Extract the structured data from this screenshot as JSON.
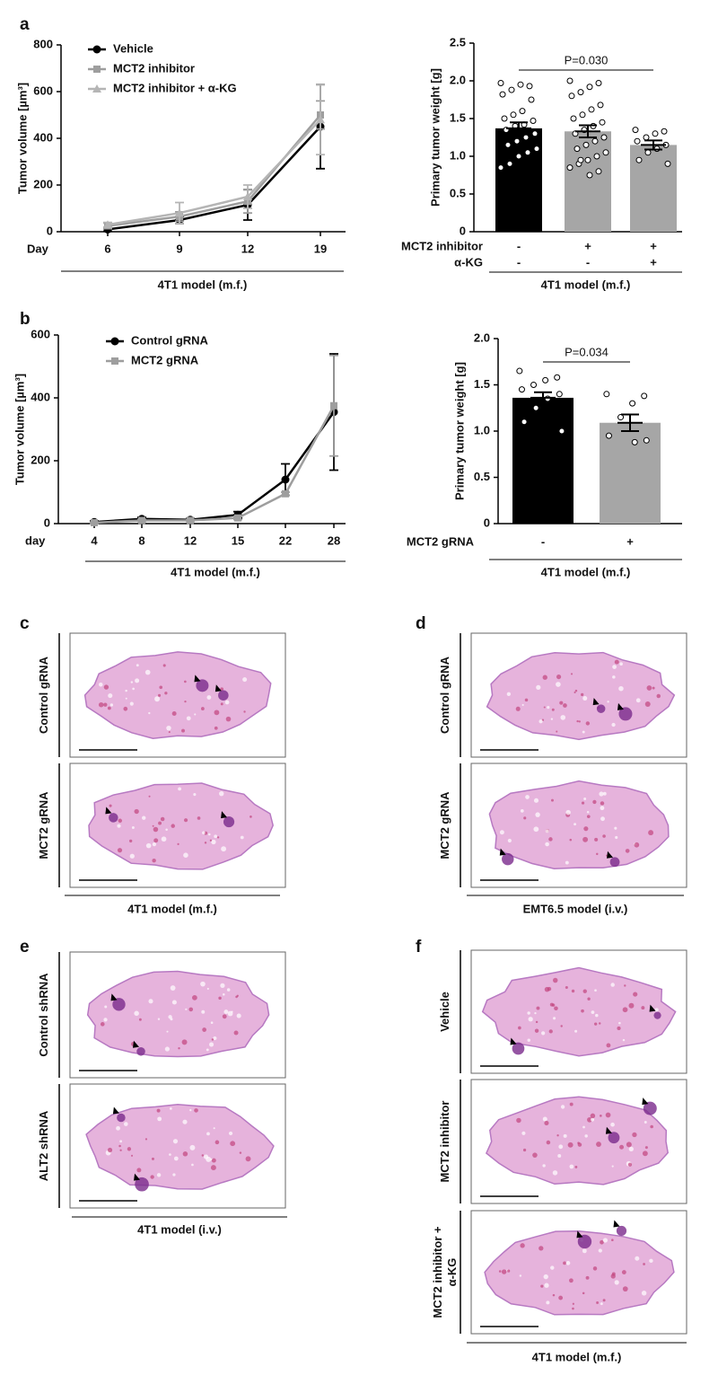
{
  "chart_data": [
    {
      "type": "line",
      "letter": "a",
      "ylabel": "Tumor volume [µm³]",
      "xlabel": "Day",
      "caption": "4T1 model (m.f.)",
      "categories": [
        6,
        9,
        12,
        19
      ],
      "ylim": [
        0,
        800
      ],
      "yticks": [
        0,
        200,
        400,
        600,
        800
      ],
      "series": [
        {
          "name": "Vehicle",
          "color": "#000000",
          "marker": "circle",
          "values": [
            10,
            50,
            115,
            450
          ],
          "errors": [
            8,
            15,
            65,
            180
          ]
        },
        {
          "name": "MCT2 inhibitor",
          "color": "#9e9e9e",
          "marker": "square",
          "values": [
            25,
            65,
            130,
            500
          ],
          "errors": [
            12,
            20,
            50,
            60
          ]
        },
        {
          "name": "MCT2 inhibitor + α-KG",
          "color": "#b5b5b5",
          "marker": "triangle",
          "values": [
            30,
            80,
            150,
            480
          ],
          "errors": [
            10,
            45,
            50,
            150
          ]
        }
      ]
    },
    {
      "type": "bar",
      "ylabel": "Primary tumor weight [g]",
      "caption": "4T1 model (m.f.)",
      "annotation": "P=0.030",
      "values": [
        1.37,
        1.33,
        1.15
      ],
      "errors": [
        0.08,
        0.08,
        0.06
      ],
      "colors": [
        "#000000",
        "#a6a6a6",
        "#a6a6a6"
      ],
      "ylim": [
        0,
        2.5
      ],
      "yticks": [
        0,
        0.5,
        {
          "value": 1,
          "label": "1.0"
        },
        1.5,
        {
          "value": 2,
          "label": "2.0"
        },
        2.5
      ],
      "rows": [
        {
          "label": "MCT2 inhibitor",
          "values": [
            "-",
            "+",
            "+"
          ]
        },
        {
          "label": "α-KG",
          "values": [
            "-",
            "-",
            "+"
          ]
        }
      ],
      "points": [
        [
          1.97,
          1.93,
          1.95,
          1.88,
          1.82,
          1.75,
          1.6,
          1.55,
          1.5,
          1.47,
          1.42,
          1.4,
          1.35,
          1.3,
          1.25,
          1.2,
          1.15,
          1.1,
          1.05,
          1.0,
          0.9,
          0.85
        ],
        [
          2.0,
          1.97,
          1.92,
          1.85,
          1.8,
          1.68,
          1.62,
          1.55,
          1.5,
          1.45,
          1.4,
          1.35,
          1.3,
          1.25,
          1.2,
          1.15,
          1.1,
          1.05,
          1.0,
          0.95,
          0.9,
          0.85,
          0.8,
          0.75,
          0.95
        ],
        [
          1.35,
          1.33,
          1.3,
          1.25,
          1.2,
          1.15,
          1.1,
          1.05,
          0.95,
          0.9
        ]
      ]
    },
    {
      "type": "line",
      "letter": "b",
      "ylabel": "Tumor volume [µm³]",
      "xlabel": "day",
      "caption": "4T1 model (m.f.)",
      "categories": [
        4,
        8,
        12,
        15,
        22,
        28
      ],
      "ylim": [
        0,
        600
      ],
      "yticks": [
        0,
        200,
        400,
        600
      ],
      "series": [
        {
          "name": "Control gRNA",
          "color": "#000000",
          "marker": "circle",
          "values": [
            5,
            15,
            12,
            28,
            140,
            355
          ],
          "errors": [
            3,
            5,
            4,
            10,
            50,
            185
          ]
        },
        {
          "name": "MCT2 gRNA",
          "color": "#9e9e9e",
          "marker": "square",
          "values": [
            3,
            10,
            10,
            18,
            95,
            375
          ],
          "errors": [
            2,
            3,
            3,
            5,
            5,
            160
          ]
        }
      ]
    },
    {
      "type": "bar",
      "ylabel": "Primary tumor weight [g]",
      "caption": "4T1 model (m.f.)",
      "annotation": "P=0.034",
      "values": [
        1.36,
        1.09
      ],
      "errors": [
        0.06,
        0.09
      ],
      "colors": [
        "#000000",
        "#a6a6a6"
      ],
      "ylim": [
        0,
        2
      ],
      "yticks": [
        0,
        0.5,
        {
          "value": 1,
          "label": "1.0"
        },
        1.5,
        {
          "value": 2,
          "label": "2.0"
        }
      ],
      "rows": [
        {
          "label": "MCT2 gRNA",
          "values": [
            "-",
            "+"
          ]
        }
      ],
      "points": [
        [
          1.65,
          1.58,
          1.55,
          1.5,
          1.45,
          1.4,
          1.35,
          1.25,
          1.1,
          1.0
        ],
        [
          1.4,
          1.38,
          1.3,
          1.15,
          0.95,
          0.9,
          0.88
        ]
      ]
    }
  ],
  "histology": [
    {
      "letter": "c",
      "rows": [
        [
          "Control gRNA"
        ],
        [
          "MCT2 gRNA"
        ]
      ],
      "caption": "4T1 model (m.f.)"
    },
    {
      "letter": "d",
      "rows": [
        [
          "Control gRNA"
        ],
        [
          "MCT2 gRNA"
        ]
      ],
      "caption": "EMT6.5 model (i.v.)"
    },
    {
      "letter": "e",
      "rows": [
        [
          "Control shRNA"
        ],
        [
          "ALT2 shRNA"
        ]
      ],
      "caption": "4T1 model (i.v.)"
    },
    {
      "letter": "f",
      "rows": [
        [
          "Vehicle"
        ],
        [
          "MCT2 inhibitor"
        ],
        [
          "MCT2 inhibitor +",
          "α-KG"
        ]
      ],
      "caption": "4T1 model (m.f.)"
    }
  ]
}
